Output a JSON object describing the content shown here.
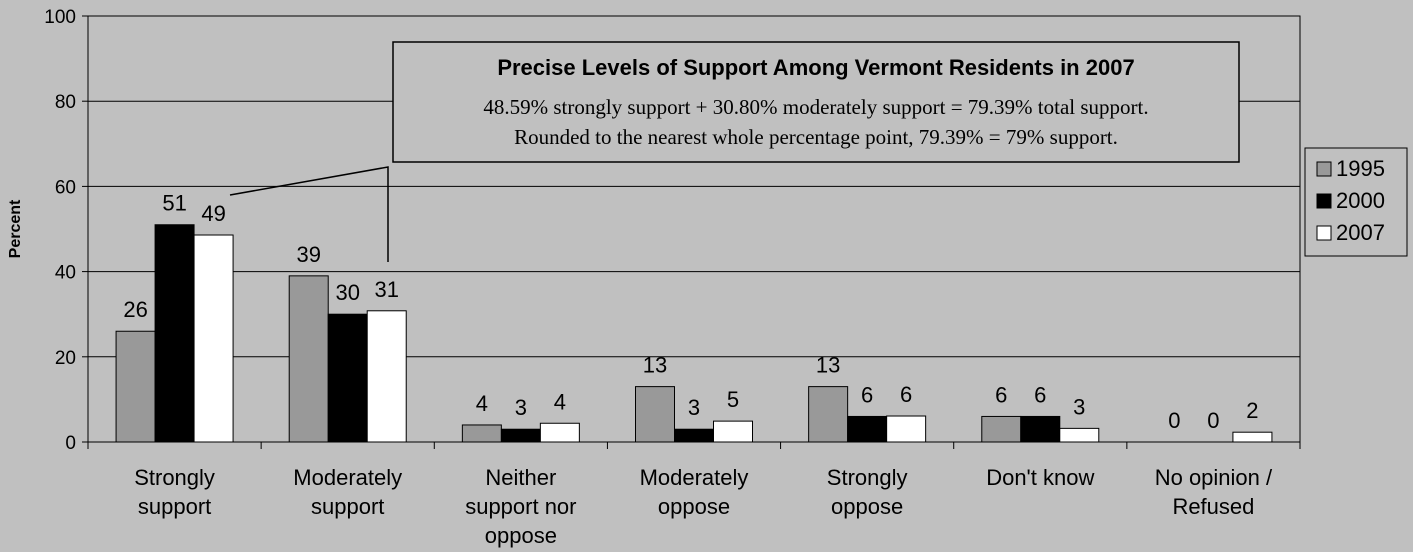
{
  "chart_data": {
    "type": "bar",
    "ylabel": "Percent",
    "ylim": [
      0,
      100
    ],
    "yticks": [
      0,
      20,
      40,
      60,
      80,
      100
    ],
    "grid": true,
    "legend_position": "right",
    "categories": [
      [
        "Strongly",
        "support"
      ],
      [
        "Moderately",
        "support"
      ],
      [
        "Neither",
        "support nor",
        "oppose"
      ],
      [
        "Moderately",
        "oppose"
      ],
      [
        "Strongly",
        "oppose"
      ],
      [
        "Don't know"
      ],
      [
        "No opinion /",
        "Refused"
      ]
    ],
    "series": [
      {
        "name": "1995",
        "color": "#999999",
        "values": [
          26,
          39,
          4,
          13,
          13,
          6,
          0
        ],
        "labels": [
          "26",
          "39",
          "4",
          "13",
          "13",
          "6",
          "0"
        ]
      },
      {
        "name": "2000",
        "color": "#000000",
        "values": [
          51,
          30,
          3,
          3,
          6,
          6,
          0
        ],
        "labels": [
          "51",
          "30",
          "3",
          "3",
          "6",
          "6",
          "0"
        ]
      },
      {
        "name": "2007",
        "color": "#ffffff",
        "values": [
          48.59,
          30.8,
          4.4,
          4.9,
          6.1,
          3.2,
          2.3
        ],
        "labels": [
          "49",
          "31",
          "4",
          "5",
          "6",
          "3",
          "2"
        ]
      }
    ],
    "annotation": {
      "title": "Precise Levels of Support Among Vermont Residents in 2007",
      "lines": [
        "48.59% strongly support + 30.80% moderately support = 79.39% total support.",
        "Rounded to the nearest whole percentage point, 79.39% = 79% support."
      ]
    }
  }
}
